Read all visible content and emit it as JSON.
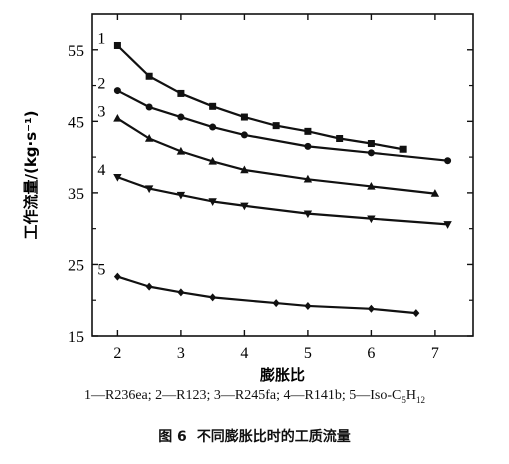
{
  "chart_data": {
    "type": "line",
    "xlabel": "膨胀比",
    "ylabel": "工作流量/(kg·s⁻¹)",
    "xlim": [
      1.6,
      7.6
    ],
    "ylim": [
      15,
      60
    ],
    "xticks": [
      "2",
      "3",
      "4",
      "5",
      "6",
      "7"
    ],
    "yticks": [
      "15",
      "25",
      "35",
      "45",
      "55"
    ],
    "grid": false,
    "series": [
      {
        "name": "1",
        "marker": "square",
        "x": [
          2.0,
          2.5,
          3.0,
          3.5,
          4.0,
          4.5,
          5.0,
          5.5,
          6.0,
          6.5
        ],
        "y": [
          55.6,
          51.3,
          48.9,
          47.1,
          45.6,
          44.4,
          43.6,
          42.6,
          41.9,
          41.1
        ]
      },
      {
        "name": "2",
        "marker": "circle",
        "x": [
          2.0,
          2.5,
          3.0,
          3.5,
          4.0,
          5.0,
          6.0,
          7.2
        ],
        "y": [
          49.3,
          47.0,
          45.6,
          44.2,
          43.1,
          41.5,
          40.6,
          39.5
        ]
      },
      {
        "name": "3",
        "marker": "triangle-up",
        "x": [
          2.0,
          2.5,
          3.0,
          3.5,
          4.0,
          5.0,
          6.0,
          7.0
        ],
        "y": [
          45.4,
          42.6,
          40.8,
          39.4,
          38.2,
          36.9,
          35.9,
          34.9
        ]
      },
      {
        "name": "4",
        "marker": "triangle-down",
        "x": [
          2.0,
          2.5,
          3.0,
          3.5,
          4.0,
          5.0,
          6.0,
          7.2
        ],
        "y": [
          37.2,
          35.6,
          34.7,
          33.8,
          33.2,
          32.1,
          31.4,
          30.6
        ]
      },
      {
        "name": "5",
        "marker": "diamond",
        "x": [
          2.0,
          2.5,
          3.0,
          3.5,
          4.5,
          5.0,
          6.0,
          6.7
        ],
        "y": [
          23.3,
          21.9,
          21.1,
          20.4,
          19.6,
          19.2,
          18.8,
          18.2
        ]
      }
    ]
  },
  "legend": {
    "s1_num": "1",
    "s1_text": "—R236ea; ",
    "s2_num": "2",
    "s2_text": "—R123; ",
    "s3_num": "3",
    "s3_text": "—R245fa; ",
    "s4_num": "4",
    "s4_text": "—R141b; ",
    "s5_num": "5",
    "s5_text": "—Iso-C",
    "s5_sub1": "5",
    "s5_mid": "H",
    "s5_sub2": "12"
  },
  "caption": {
    "number": "图 6",
    "text": "不同膨胀比时的工质流量"
  }
}
